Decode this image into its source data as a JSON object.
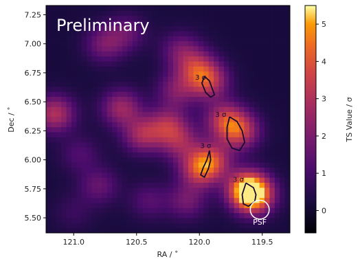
{
  "chart_data": {
    "type": "heatmap",
    "overlay_text": "Preliminary",
    "xlabel": "RA / ˚",
    "ylabel": "Dec / ˚",
    "colorbar_label": "TS Value / σ",
    "x_inverted": true,
    "xlim": [
      121.22,
      119.28
    ],
    "ylim": [
      5.37,
      7.33
    ],
    "x_ticks": [
      121.0,
      120.5,
      120.0,
      119.5
    ],
    "x_tick_labels": [
      "121.0",
      "120.5",
      "120.0",
      "119.5"
    ],
    "y_ticks": [
      5.5,
      5.75,
      6.0,
      6.25,
      6.5,
      6.75,
      7.0,
      7.25
    ],
    "y_tick_labels": [
      "5.50",
      "5.75",
      "6.00",
      "6.25",
      "6.50",
      "6.75",
      "7.00",
      "7.25"
    ],
    "colorbar_range": [
      -0.6,
      5.5
    ],
    "colorbar_ticks": [
      0,
      1,
      2,
      3,
      4,
      5
    ],
    "colorbar_tick_labels": [
      "0",
      "1",
      "2",
      "3",
      "4",
      "5"
    ],
    "colormap": "inferno",
    "grid": false,
    "hotspots": [
      {
        "ra": 119.57,
        "dec": 5.7,
        "value": 5.2
      },
      {
        "ra": 119.63,
        "dec": 5.76,
        "value": 3.5
      },
      {
        "ra": 119.68,
        "dec": 6.25,
        "value": 3.3
      },
      {
        "ra": 119.8,
        "dec": 6.35,
        "value": 3.0
      },
      {
        "ra": 119.93,
        "dec": 6.68,
        "value": 3.2
      },
      {
        "ra": 120.03,
        "dec": 6.8,
        "value": 2.6
      },
      {
        "ra": 119.9,
        "dec": 6.0,
        "value": 3.0
      },
      {
        "ra": 120.0,
        "dec": 5.92,
        "value": 3.2
      },
      {
        "ra": 120.25,
        "dec": 6.3,
        "value": 2.6
      },
      {
        "ra": 120.45,
        "dec": 6.22,
        "value": 2.7
      },
      {
        "ra": 120.62,
        "dec": 6.45,
        "value": 2.6
      },
      {
        "ra": 121.15,
        "dec": 6.4,
        "value": 3.0
      },
      {
        "ra": 120.75,
        "dec": 7.0,
        "value": 1.9
      },
      {
        "ra": 120.58,
        "dec": 7.1,
        "value": 1.5
      },
      {
        "ra": 120.15,
        "dec": 6.95,
        "value": 1.7
      },
      {
        "ra": 120.18,
        "dec": 6.6,
        "value": 2.0
      },
      {
        "ra": 120.8,
        "dec": 5.78,
        "value": 1.6
      },
      {
        "ra": 120.4,
        "dec": 5.65,
        "value": 1.3
      },
      {
        "ra": 120.1,
        "dec": 5.65,
        "value": 1.8
      },
      {
        "ra": 120.95,
        "dec": 6.05,
        "value": 1.2
      },
      {
        "ra": 121.0,
        "dec": 5.55,
        "value": 0.8
      },
      {
        "ra": 120.15,
        "dec": 6.15,
        "value": 2.2
      }
    ],
    "contours": [
      {
        "label": "3 σ",
        "label_at": {
          "ra": 119.99,
          "dec": 6.69
        },
        "points": [
          [
            119.96,
            6.72
          ],
          [
            119.98,
            6.66
          ],
          [
            119.95,
            6.58
          ],
          [
            119.91,
            6.54
          ],
          [
            119.88,
            6.56
          ],
          [
            119.9,
            6.62
          ],
          [
            119.92,
            6.68
          ],
          [
            119.96,
            6.72
          ]
        ]
      },
      {
        "label": "3 σ",
        "label_at": {
          "ra": 119.83,
          "dec": 6.37
        },
        "points": [
          [
            119.76,
            6.37
          ],
          [
            119.7,
            6.33
          ],
          [
            119.66,
            6.25
          ],
          [
            119.64,
            6.15
          ],
          [
            119.68,
            6.08
          ],
          [
            119.74,
            6.1
          ],
          [
            119.78,
            6.18
          ],
          [
            119.78,
            6.28
          ],
          [
            119.76,
            6.37
          ]
        ]
      },
      {
        "label": "3 σ",
        "label_at": {
          "ra": 119.95,
          "dec": 6.1
        },
        "points": [
          [
            119.92,
            6.08
          ],
          [
            119.94,
            6.0
          ],
          [
            119.97,
            5.93
          ],
          [
            119.99,
            5.87
          ],
          [
            119.96,
            5.85
          ],
          [
            119.93,
            5.92
          ],
          [
            119.91,
            6.0
          ],
          [
            119.92,
            6.08
          ]
        ]
      },
      {
        "label": "3 σ",
        "label_at": {
          "ra": 119.69,
          "dec": 5.81
        },
        "points": [
          [
            119.63,
            5.8
          ],
          [
            119.57,
            5.76
          ],
          [
            119.55,
            5.7
          ],
          [
            119.56,
            5.64
          ],
          [
            119.61,
            5.6
          ],
          [
            119.65,
            5.62
          ],
          [
            119.66,
            5.7
          ],
          [
            119.63,
            5.8
          ]
        ]
      }
    ],
    "psf": {
      "label": "PSF",
      "ra": 119.52,
      "dec": 5.57,
      "radius": 0.075
    }
  }
}
